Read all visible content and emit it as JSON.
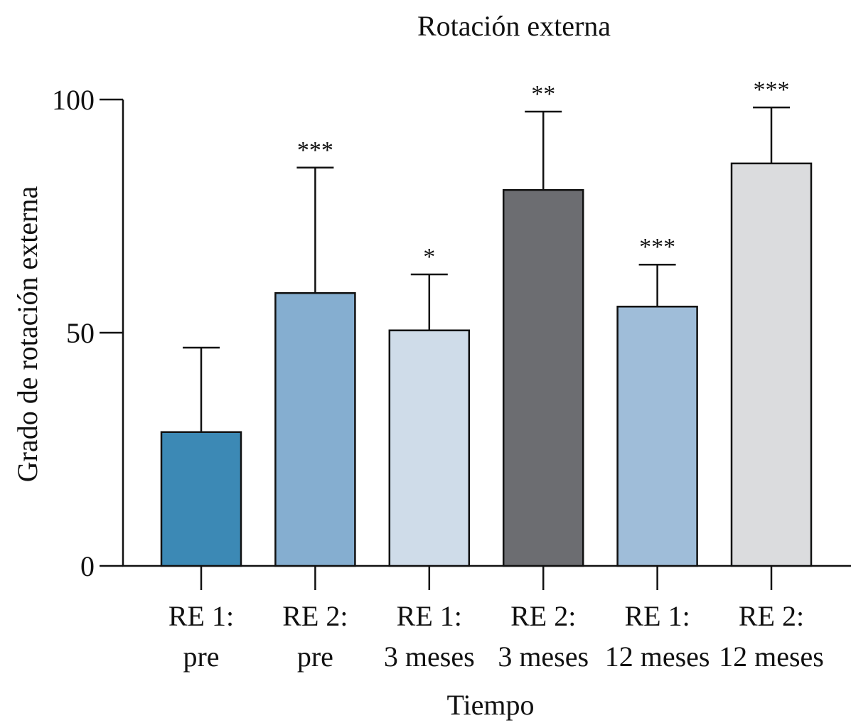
{
  "chart_data": {
    "type": "bar",
    "title": "Rotación externa",
    "xlabel": "Tiempo",
    "ylabel": "Grado de rotación externa",
    "ylim": [
      0,
      100
    ],
    "yticks": [
      0,
      50,
      100
    ],
    "ytick_labels": [
      "0",
      "50",
      "100"
    ],
    "grid": false,
    "legend": "none",
    "categories": [
      [
        "RE 1:",
        "pre"
      ],
      [
        "RE 2:",
        "pre"
      ],
      [
        "RE 1:",
        "3 meses"
      ],
      [
        "RE 2:",
        "3 meses"
      ],
      [
        "RE 1:",
        "12 meses"
      ],
      [
        "RE 2:",
        "12 meses"
      ]
    ],
    "values": [
      28.7,
      58.5,
      50.5,
      80.6,
      55.6,
      86.3
    ],
    "error_upper": [
      46.8,
      85.4,
      62.5,
      97.4,
      64.6,
      98.3
    ],
    "significance": [
      "",
      "***",
      "*",
      "**",
      "***",
      "***"
    ],
    "colors": [
      "#3c89b5",
      "#85aed0",
      "#cfdce9",
      "#6c6d71",
      "#9fbdd9",
      "#dbdcde"
    ]
  }
}
